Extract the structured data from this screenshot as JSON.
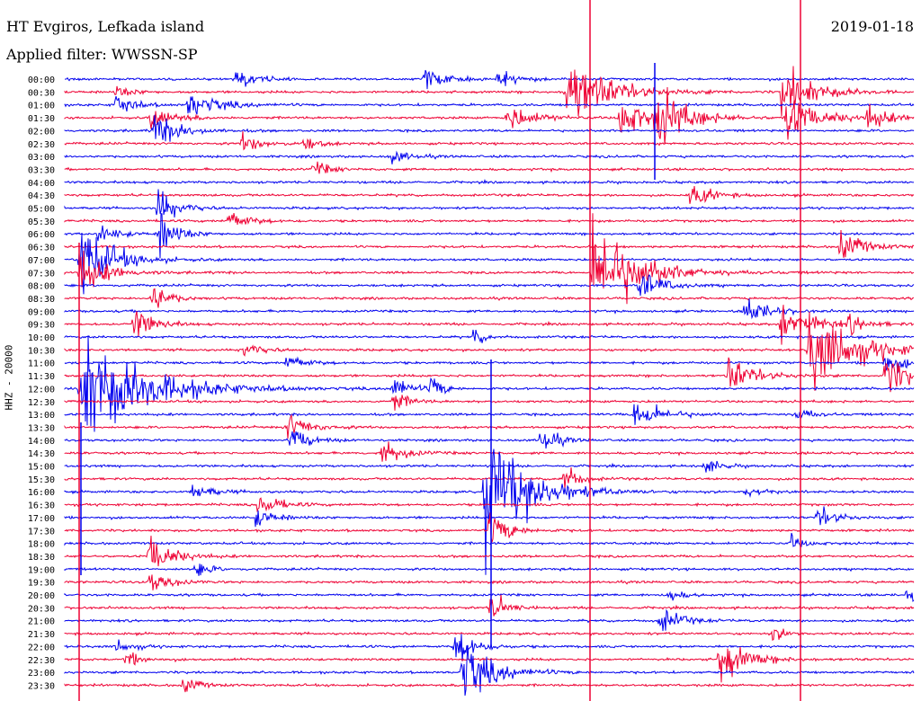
{
  "header": {
    "station": "HT Evgiros, Lefkada island",
    "date": "2019-01-18",
    "filter_line": "Applied filter: WWSSN-SP"
  },
  "chart_data": {
    "type": "helicorder",
    "channel_label": "HHZ - 20000",
    "row_labels": [
      "00:00",
      "00:30",
      "01:00",
      "01:30",
      "02:00",
      "02:30",
      "03:00",
      "03:30",
      "04:00",
      "04:30",
      "05:00",
      "05:30",
      "06:00",
      "06:30",
      "07:00",
      "07:30",
      "08:00",
      "08:30",
      "09:00",
      "09:30",
      "10:00",
      "10:30",
      "11:00",
      "11:30",
      "12:00",
      "12:30",
      "13:00",
      "13:30",
      "14:00",
      "14:30",
      "15:00",
      "15:30",
      "16:00",
      "16:30",
      "17:00",
      "17:30",
      "18:00",
      "18:30",
      "19:00",
      "19:30",
      "20:00",
      "20:30",
      "21:00",
      "21:30",
      "22:00",
      "22:30",
      "23:00",
      "23:30"
    ],
    "colors": {
      "even_rows": "#0000ee",
      "odd_rows": "#ee0033"
    }
  }
}
